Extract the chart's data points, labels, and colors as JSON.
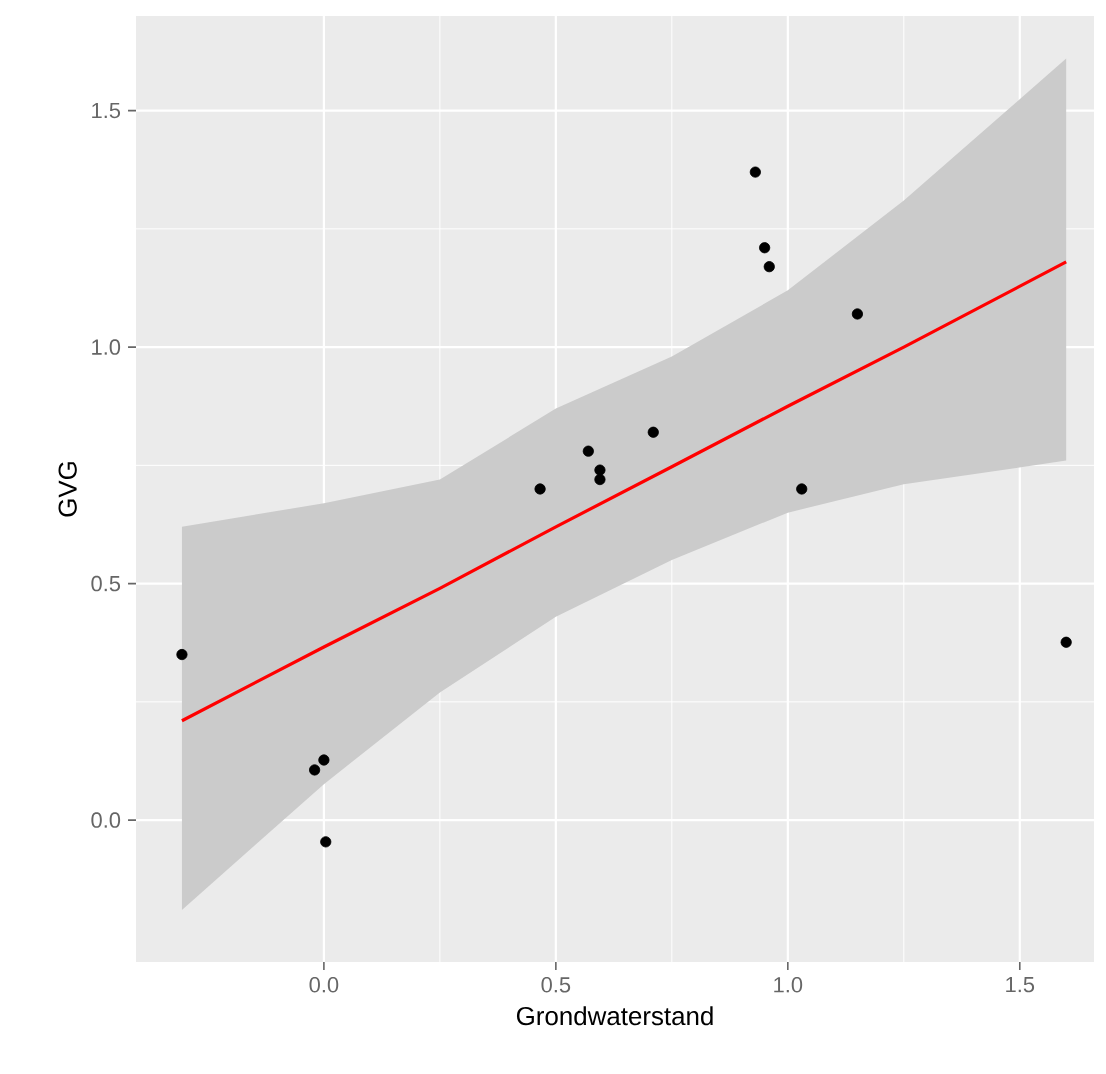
{
  "chart_data": {
    "type": "scatter",
    "xlabel": "Grondwaterstand",
    "ylabel": "GVG",
    "xlim": [
      -0.405,
      1.66
    ],
    "ylim": [
      -0.3,
      1.7
    ],
    "xticks": [
      {
        "value": 0,
        "label": "0.0"
      },
      {
        "value": 0.5,
        "label": "0.5"
      },
      {
        "value": 1,
        "label": "1.0"
      },
      {
        "value": 1.5,
        "label": "1.5"
      }
    ],
    "yticks": [
      {
        "value": 0,
        "label": "0.0"
      },
      {
        "value": 0.5,
        "label": "0.5"
      },
      {
        "value": 1,
        "label": "1.0"
      },
      {
        "value": 1.5,
        "label": "1.5"
      }
    ],
    "grid": true,
    "series": [
      {
        "color": "#000000",
        "marker": "circle",
        "x": [
          -0.306,
          -0.02,
          0,
          0.004,
          0.466,
          0.57,
          0.595,
          0.595,
          0.71,
          0.93,
          0.95,
          0.96,
          1.03,
          1.15,
          1.6
        ],
        "values": [
          0.35,
          0.106,
          0.127,
          -0.046,
          0.7,
          0.78,
          0.74,
          0.72,
          0.82,
          1.37,
          1.21,
          1.17,
          0.7,
          1.07,
          0.376
        ]
      },
      {
        "type": "line",
        "color": "#ff0000",
        "x": [
          -0.306,
          0,
          0.25,
          0.5,
          0.75,
          1.0,
          1.25,
          1.6
        ],
        "values": [
          0.21,
          0.366,
          0.49,
          0.62,
          0.747,
          0.875,
          1.0,
          1.18
        ],
        "lower": [
          -0.19,
          0.076,
          0.27,
          0.43,
          0.55,
          0.65,
          0.71,
          0.76
        ],
        "upper": [
          0.62,
          0.67,
          0.72,
          0.87,
          0.98,
          1.12,
          1.31,
          1.61
        ]
      }
    ]
  }
}
